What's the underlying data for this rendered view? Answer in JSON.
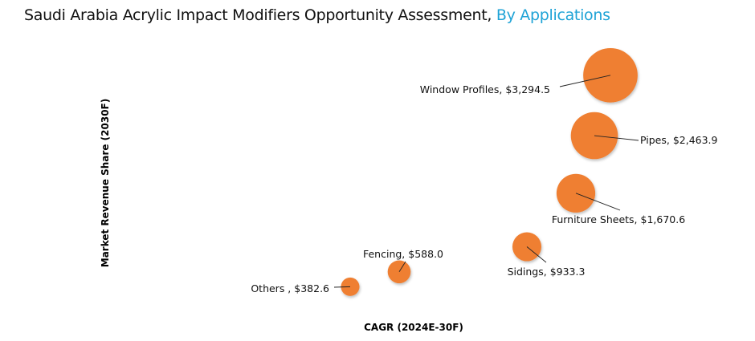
{
  "chart_data": {
    "type": "scatter",
    "subtype": "bubble",
    "title": "Saudi Arabia Acrylic Impact Modifiers Opportunity Assessment,",
    "title_highlight": "By Applications",
    "xlabel": "CAGR (2024E-30F)",
    "ylabel": "Market Revenue Share (2030F)",
    "grid": false,
    "bubble_color": "#ef7f30",
    "title_accent_color": "#1fa3d6",
    "points": [
      {
        "name": "Window Profiles",
        "label": "Window Profiles, $3,294.5",
        "value": 3294.5
      },
      {
        "name": "Pipes",
        "label": "Pipes, $2,463.9",
        "value": 2463.9
      },
      {
        "name": "Furniture Sheets",
        "label": "Furniture Sheets, $1,670.6",
        "value": 1670.6
      },
      {
        "name": "Sidings",
        "label": "Sidings, $933.3",
        "value": 933.3
      },
      {
        "name": "Fencing",
        "label": "Fencing, $588.0",
        "value": 588.0
      },
      {
        "name": "Others",
        "label": "Others , $382.6",
        "value": 382.6
      }
    ]
  }
}
